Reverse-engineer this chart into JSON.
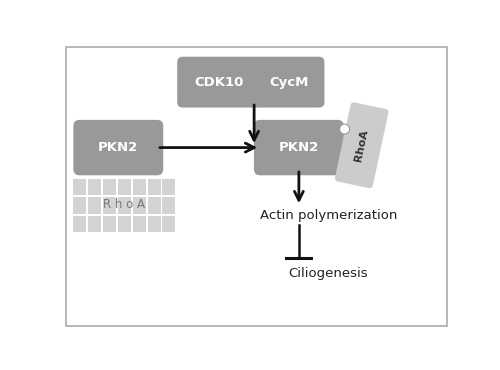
{
  "fig_width": 5.0,
  "fig_height": 3.7,
  "bg_color": "#ffffff",
  "border_color": "#aaaaaa",
  "box_gray_color": "#999999",
  "box_light_color": "#cccccc",
  "text_white": "#ffffff",
  "text_dark": "#222222",
  "text_med": "#666666",
  "arrow_color": "#111111",
  "cdk10_label": "CDK10",
  "cycm_label": "CycM",
  "pkn2_left_label": "PKN2",
  "pkn2_right_label": "PKN2",
  "rhoa_rotated_label": "RhoA",
  "rhoa_ghost_label": "R h o A",
  "actin_label": "Actin polymerization",
  "cilio_label": "Ciliogenesis",
  "xlim": [
    0,
    5.0
  ],
  "ylim": [
    0,
    3.7
  ]
}
